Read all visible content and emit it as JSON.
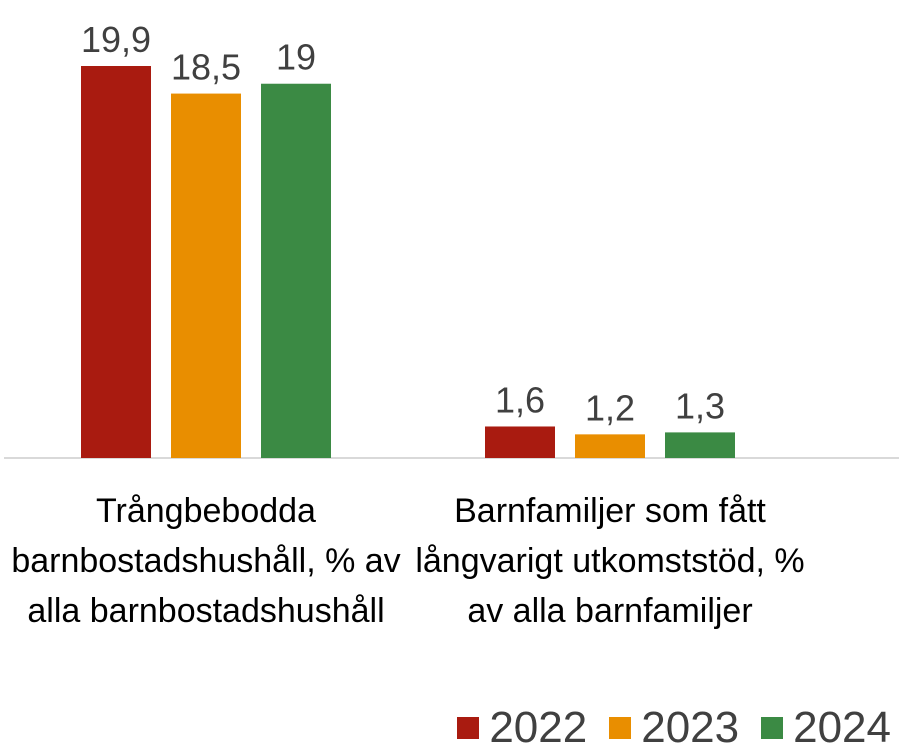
{
  "chart_data": {
    "type": "bar",
    "categories": [
      "Trångbebodda barnbostadshushåll, % av alla barnbostadshushåll",
      "Barnfamiljer som fått långvarigt utkomststöd, % av alla barnfamiljer"
    ],
    "series": [
      {
        "name": "2022",
        "color": "#a91b10",
        "values": [
          19.9,
          1.6
        ],
        "value_labels": [
          "19,9",
          "1,6"
        ]
      },
      {
        "name": "2023",
        "color": "#e98e00",
        "values": [
          18.5,
          1.2
        ],
        "value_labels": [
          "18,5",
          "1,2"
        ]
      },
      {
        "name": "2024",
        "color": "#3b8a44",
        "values": [
          19,
          1.3
        ],
        "value_labels": [
          "19",
          "1,3"
        ]
      }
    ],
    "legend": "bottom-right"
  }
}
